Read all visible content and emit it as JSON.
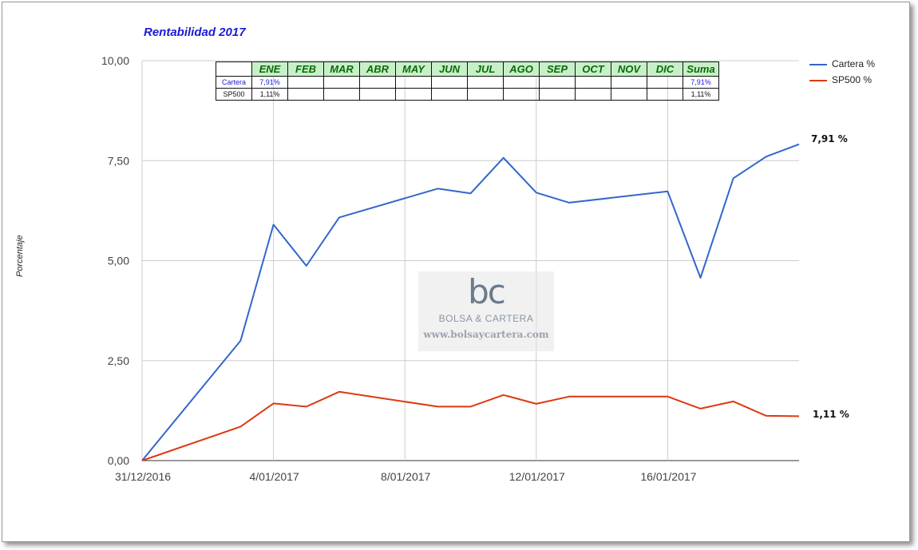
{
  "title": "Rentabilidad 2017",
  "ylabel": "Porcentaje",
  "colors": {
    "cartera": "#3366cc",
    "sp500": "#dc3912",
    "title": "#1a1ad6",
    "table_header_bg": "#c8f0c8"
  },
  "legend": [
    {
      "label": "Cartera %",
      "color": "#3366cc"
    },
    {
      "label": "SP500 %",
      "color": "#dc3912"
    }
  ],
  "end_labels": {
    "cartera": "7,91 %",
    "sp500": "1,11 %"
  },
  "table": {
    "headers": [
      "ENE",
      "FEB",
      "MAR",
      "ABR",
      "MAY",
      "JUN",
      "JUL",
      "AGO",
      "SEP",
      "OCT",
      "NOV",
      "DIC",
      "Suma"
    ],
    "rows": [
      {
        "label": "Cartera",
        "values": [
          "7,91%",
          "",
          "",
          "",
          "",
          "",
          "",
          "",
          "",
          "",
          "",
          "",
          "7,91%"
        ]
      },
      {
        "label": "SP500",
        "values": [
          "1,11%",
          "",
          "",
          "",
          "",
          "",
          "",
          "",
          "",
          "",
          "",
          "",
          "1,11%"
        ]
      }
    ]
  },
  "watermark": {
    "logo": "bc",
    "brand": "BOLSA & CARTERA",
    "url": "www.bolsaycartera.com"
  },
  "chart_data": {
    "type": "line",
    "title": "Rentabilidad 2017",
    "xlabel": "",
    "ylabel": "Porcentaje",
    "ylim": [
      0,
      10
    ],
    "yticks": [
      "0,00",
      "2,50",
      "5,00",
      "7,50",
      "10,00"
    ],
    "xticks": [
      "31/12/2016",
      "4/01/2017",
      "8/01/2017",
      "12/01/2017",
      "16/01/2017"
    ],
    "xlim": [
      "2016-12-31",
      "2017-01-20"
    ],
    "legend_position": "right",
    "grid": true,
    "x": [
      "2016-12-31",
      "2017-01-03",
      "2017-01-04",
      "2017-01-05",
      "2017-01-06",
      "2017-01-09",
      "2017-01-10",
      "2017-01-11",
      "2017-01-12",
      "2017-01-13",
      "2017-01-16",
      "2017-01-17",
      "2017-01-18",
      "2017-01-19",
      "2017-01-20"
    ],
    "series": [
      {
        "name": "Cartera %",
        "values": [
          0,
          3.0,
          5.9,
          4.87,
          6.08,
          6.8,
          6.68,
          7.57,
          6.7,
          6.45,
          6.73,
          4.57,
          7.06,
          7.6,
          7.91
        ]
      },
      {
        "name": "SP500 %",
        "values": [
          0,
          0.85,
          1.43,
          1.35,
          1.72,
          1.35,
          1.35,
          1.64,
          1.42,
          1.6,
          1.6,
          1.3,
          1.48,
          1.12,
          1.11
        ]
      }
    ]
  }
}
